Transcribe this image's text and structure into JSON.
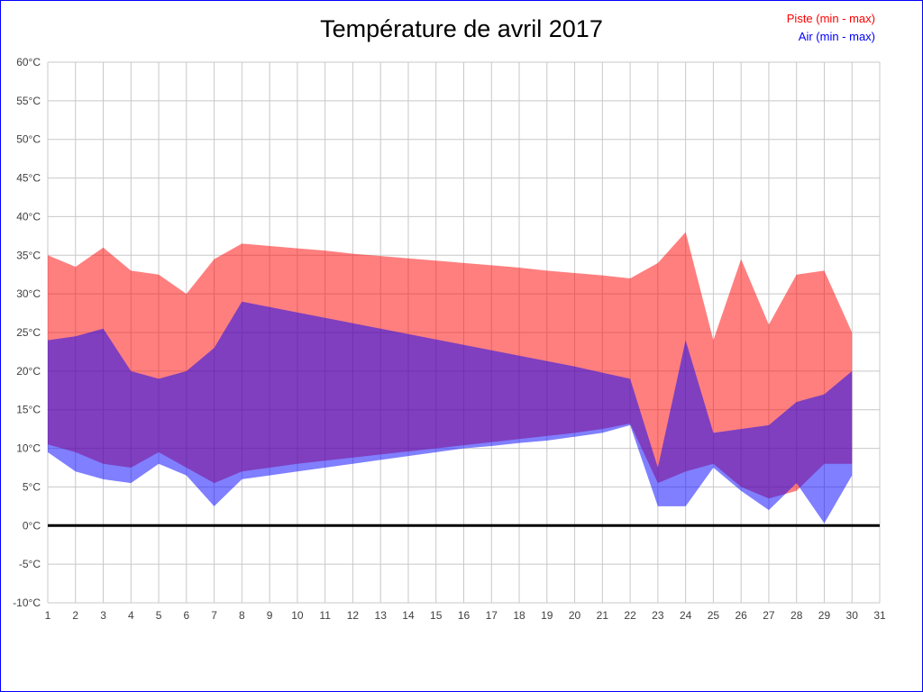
{
  "header": {
    "title": "Température de avril 2017"
  },
  "legend": [
    {
      "label": "Piste (min - max)",
      "color": "#ff0000"
    },
    {
      "label": "Air (min - max)",
      "color": "#0000ff"
    }
  ],
  "chart_data": {
    "type": "area",
    "title": "Température de avril 2017",
    "grid": true,
    "legend_position": "top-right",
    "grid_color": "#c8c8c8",
    "tick_color": "#404040",
    "zero_line_color": "#000000",
    "band_opacity": 0.5,
    "xlim": [
      1,
      31
    ],
    "ylim": [
      -10,
      60
    ],
    "y_step": 5,
    "x_tick_labels": [
      "1",
      "2",
      "3",
      "4",
      "5",
      "6",
      "7",
      "8",
      "9",
      "10",
      "11",
      "12",
      "13",
      "14",
      "15",
      "16",
      "17",
      "18",
      "19",
      "20",
      "21",
      "22",
      "23",
      "24",
      "25",
      "26",
      "27",
      "28",
      "29",
      "30",
      "31"
    ],
    "y_tick_labels": [
      "60°C",
      "55°C",
      "50°C",
      "45°C",
      "40°C",
      "35°C",
      "30°C",
      "25°C",
      "20°C",
      "15°C",
      "10°C",
      "5°C",
      "0°C",
      "-5°C",
      "-10°C"
    ],
    "days": [
      1,
      2,
      3,
      4,
      5,
      6,
      7,
      8,
      9,
      10,
      11,
      12,
      13,
      14,
      15,
      16,
      17,
      18,
      19,
      20,
      21,
      22,
      23,
      24,
      25,
      26,
      27,
      28,
      29,
      30
    ],
    "series": [
      {
        "id": "piste",
        "name": "Piste (min - max)",
        "color": "#ff0000",
        "max": [
          35,
          33.5,
          36,
          33,
          32.5,
          30,
          34.5,
          36.5,
          36.2,
          35.9,
          35.6,
          35.2,
          34.9,
          34.6,
          34.3,
          34,
          33.7,
          33.4,
          33,
          32.7,
          32.4,
          32,
          34,
          38,
          24,
          34.5,
          26,
          32.5,
          33,
          25
        ],
        "min": [
          10.5,
          9.5,
          8,
          7.5,
          9.5,
          7.5,
          5.5,
          7,
          7.5,
          8,
          8.4,
          8.8,
          9.2,
          9.6,
          10,
          10.4,
          10.8,
          11.2,
          11.6,
          12,
          12.5,
          13.2,
          5.5,
          7,
          8,
          5,
          3.5,
          4.5,
          8,
          8
        ]
      },
      {
        "id": "air",
        "name": "Air (min - max)",
        "color": "#0000ff",
        "max": [
          24,
          24.5,
          25.5,
          20,
          19,
          20,
          23,
          29,
          28.3,
          27.6,
          26.9,
          26.2,
          25.5,
          24.8,
          24.1,
          23.4,
          22.7,
          22,
          21.3,
          20.6,
          19.8,
          19,
          7.5,
          24,
          12,
          12.5,
          13,
          16,
          17,
          20
        ],
        "min": [
          9.5,
          7,
          6,
          5.5,
          8,
          6.5,
          2.5,
          6,
          6.5,
          7,
          7.5,
          8,
          8.5,
          9,
          9.5,
          10,
          10.3,
          10.7,
          11,
          11.5,
          12,
          13,
          2.5,
          2.5,
          7.5,
          4.5,
          2,
          5.5,
          0.3,
          6.5
        ]
      }
    ]
  }
}
